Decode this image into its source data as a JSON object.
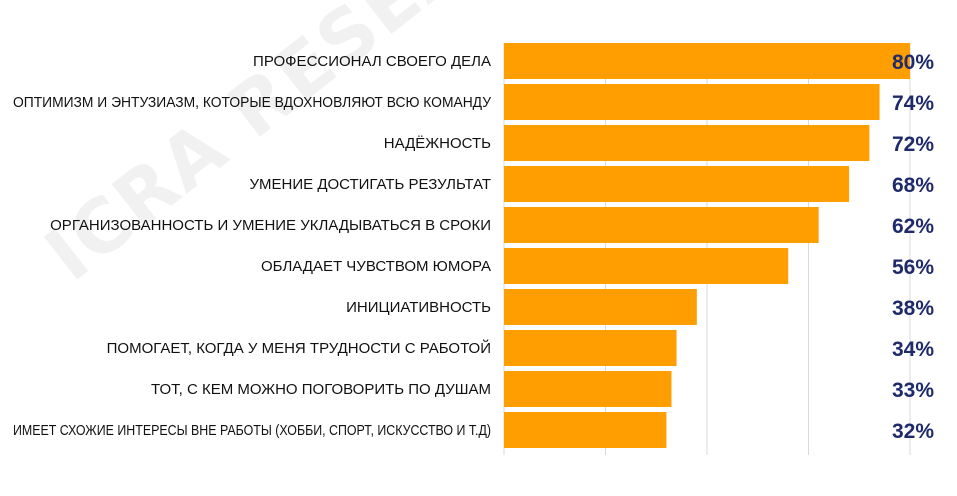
{
  "watermark": "ICRA RESEARCH AGENCY",
  "chart_data": {
    "type": "bar",
    "orientation": "horizontal",
    "categories": [
      "ПРОФЕССИОНАЛ СВОЕГО ДЕЛА",
      "ОПТИМИЗМ И ЭНТУЗИАЗМ, КОТОРЫЕ ВДОХНОВЛЯЮТ ВСЮ КОМАНДУ",
      "НАДЁЖНОСТЬ",
      "УМЕНИЕ ДОСТИГАТЬ РЕЗУЛЬТАТ",
      "ОРГАНИЗОВАННОСТЬ И УМЕНИЕ УКЛАДЫВАТЬСЯ В СРОКИ",
      "ОБЛАДАЕТ ЧУВСТВОМ ЮМОРА",
      "ИНИЦИАТИВНОСТЬ",
      "ПОМОГАЕТ, КОГДА У МЕНЯ ТРУДНОСТИ С РАБОТОЙ",
      "ТОТ, С КЕМ МОЖНО ПОГОВОРИТЬ ПО ДУШАМ",
      "ИМЕЕТ СХОЖИЕ ИНТЕРЕСЫ ВНЕ РАБОТЫ (ХОББИ, СПОРТ, ИСКУССТВО И Т.Д)"
    ],
    "values": [
      80,
      74,
      72,
      68,
      62,
      56,
      38,
      34,
      33,
      32
    ],
    "value_labels": [
      "80%",
      "74%",
      "72%",
      "68%",
      "62%",
      "56%",
      "38%",
      "34%",
      "33%",
      "32%"
    ],
    "xlim": [
      0,
      80
    ],
    "gridlines_at": [
      0,
      20,
      40,
      60,
      80
    ],
    "grid": true,
    "legend": "none",
    "bar_color": "#ff9e00",
    "value_label_color": "#1f2a6b",
    "label_color": "#111111",
    "grid_color": "#d9d9d9"
  }
}
